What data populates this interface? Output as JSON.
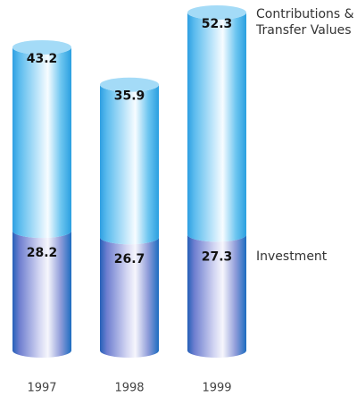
{
  "chart_data": {
    "type": "stacked_cylinder",
    "categories": [
      "1997",
      "1998",
      "1999"
    ],
    "series": [
      {
        "name": "Investment",
        "color": "#7f8fd6",
        "values": [
          28.2,
          26.7,
          27.3
        ]
      },
      {
        "name": "Contributions & Transfer Values",
        "color": "#4fb4ea",
        "values": [
          43.2,
          35.9,
          52.3
        ]
      }
    ]
  }
}
